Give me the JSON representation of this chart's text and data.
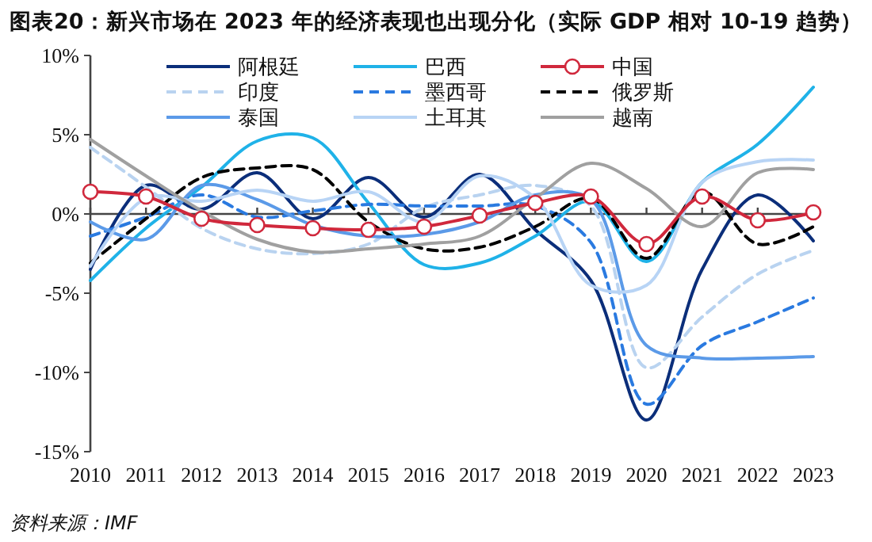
{
  "chart_data": {
    "type": "line",
    "title": "图表20：新兴市场在 2023 年的经济表现也出现分化（实际 GDP 相对 10-19 趋势）",
    "annotations": [
      "资料来源：IMF"
    ],
    "x": [
      2010,
      2011,
      2012,
      2013,
      2014,
      2015,
      2016,
      2017,
      2018,
      2019,
      2020,
      2021,
      2022,
      2023
    ],
    "xlim": [
      2010,
      2023
    ],
    "xticks": [
      2010,
      2011,
      2012,
      2013,
      2014,
      2015,
      2016,
      2017,
      2018,
      2019,
      2020,
      2021,
      2022,
      2023
    ],
    "ylim": [
      -15,
      10
    ],
    "yticks": [
      {
        "value": -15,
        "label": "-15%"
      },
      {
        "value": -10,
        "label": "-10%"
      },
      {
        "value": -5,
        "label": "-5%"
      },
      {
        "value": 0,
        "label": "0%"
      },
      {
        "value": 5,
        "label": "5%"
      },
      {
        "value": 10,
        "label": "10%"
      }
    ],
    "grid": false,
    "legend": "top",
    "marker": "none",
    "line_style": "solid",
    "series": [
      {
        "name": "阿根廷",
        "color": "#0b2e7a",
        "values": [
          -3.5,
          1.8,
          0.3,
          2.6,
          -0.3,
          2.3,
          -0.2,
          2.5,
          -1.0,
          -4.2,
          -13,
          -3.5,
          1.2,
          -1.7
        ]
      },
      {
        "name": "巴西",
        "color": "#1fb2e8",
        "values": [
          -4.2,
          -0.9,
          1.7,
          4.6,
          4.8,
          0.7,
          -3.2,
          -3.1,
          -1.4,
          0.8,
          -3.0,
          2.0,
          4.4,
          8.0
        ]
      },
      {
        "name": "中国",
        "color": "#d0283c",
        "marker": "circle",
        "values": [
          1.4,
          1.1,
          -0.3,
          -0.7,
          -0.9,
          -1.0,
          -0.8,
          -0.1,
          0.7,
          1.1,
          -1.9,
          1.1,
          -0.4,
          0.1
        ]
      },
      {
        "name": "印度",
        "color": "#b9d3f0",
        "line_style": "dashed",
        "values": [
          4.2,
          1.7,
          -0.9,
          -2.2,
          -2.5,
          -1.9,
          0.4,
          1.2,
          1.8,
          0.5,
          -9.7,
          -6.5,
          -3.8,
          -2.3
        ]
      },
      {
        "name": "墨西哥",
        "color": "#2a7ae0",
        "line_style": "dashed",
        "values": [
          -1.4,
          -0.2,
          1.2,
          -0.2,
          0.2,
          0.6,
          0.5,
          0.5,
          0.5,
          -1.8,
          -12,
          -8.3,
          -6.8,
          -5.3
        ]
      },
      {
        "name": "俄罗斯",
        "color": "#000000",
        "line_style": "dashed",
        "values": [
          -3.1,
          -0.3,
          2.3,
          2.9,
          2.8,
          -0.5,
          -2.2,
          -2.1,
          -0.8,
          1.0,
          -2.8,
          1.4,
          -1.9,
          -0.8
        ]
      },
      {
        "name": "泰国",
        "color": "#5b9ae8",
        "values": [
          -0.5,
          -1.6,
          1.8,
          0.9,
          -0.7,
          -1.4,
          -1.3,
          -0.5,
          1.2,
          0.9,
          -8.3,
          -9.1,
          -9.1,
          -9.0
        ]
      },
      {
        "name": "土耳其",
        "color": "#b8d4f5",
        "values": [
          -3.3,
          1.0,
          0.8,
          1.5,
          0.8,
          1.4,
          -0.5,
          2.4,
          1.0,
          -4.5,
          -4.5,
          2.0,
          3.3,
          3.4
        ]
      },
      {
        "name": "越南",
        "color": "#a0a0a0",
        "values": [
          4.7,
          2.4,
          0.2,
          -1.6,
          -2.4,
          -2.2,
          -1.9,
          -1.4,
          1.0,
          3.2,
          1.6,
          -0.8,
          2.6,
          2.8
        ]
      }
    ]
  }
}
